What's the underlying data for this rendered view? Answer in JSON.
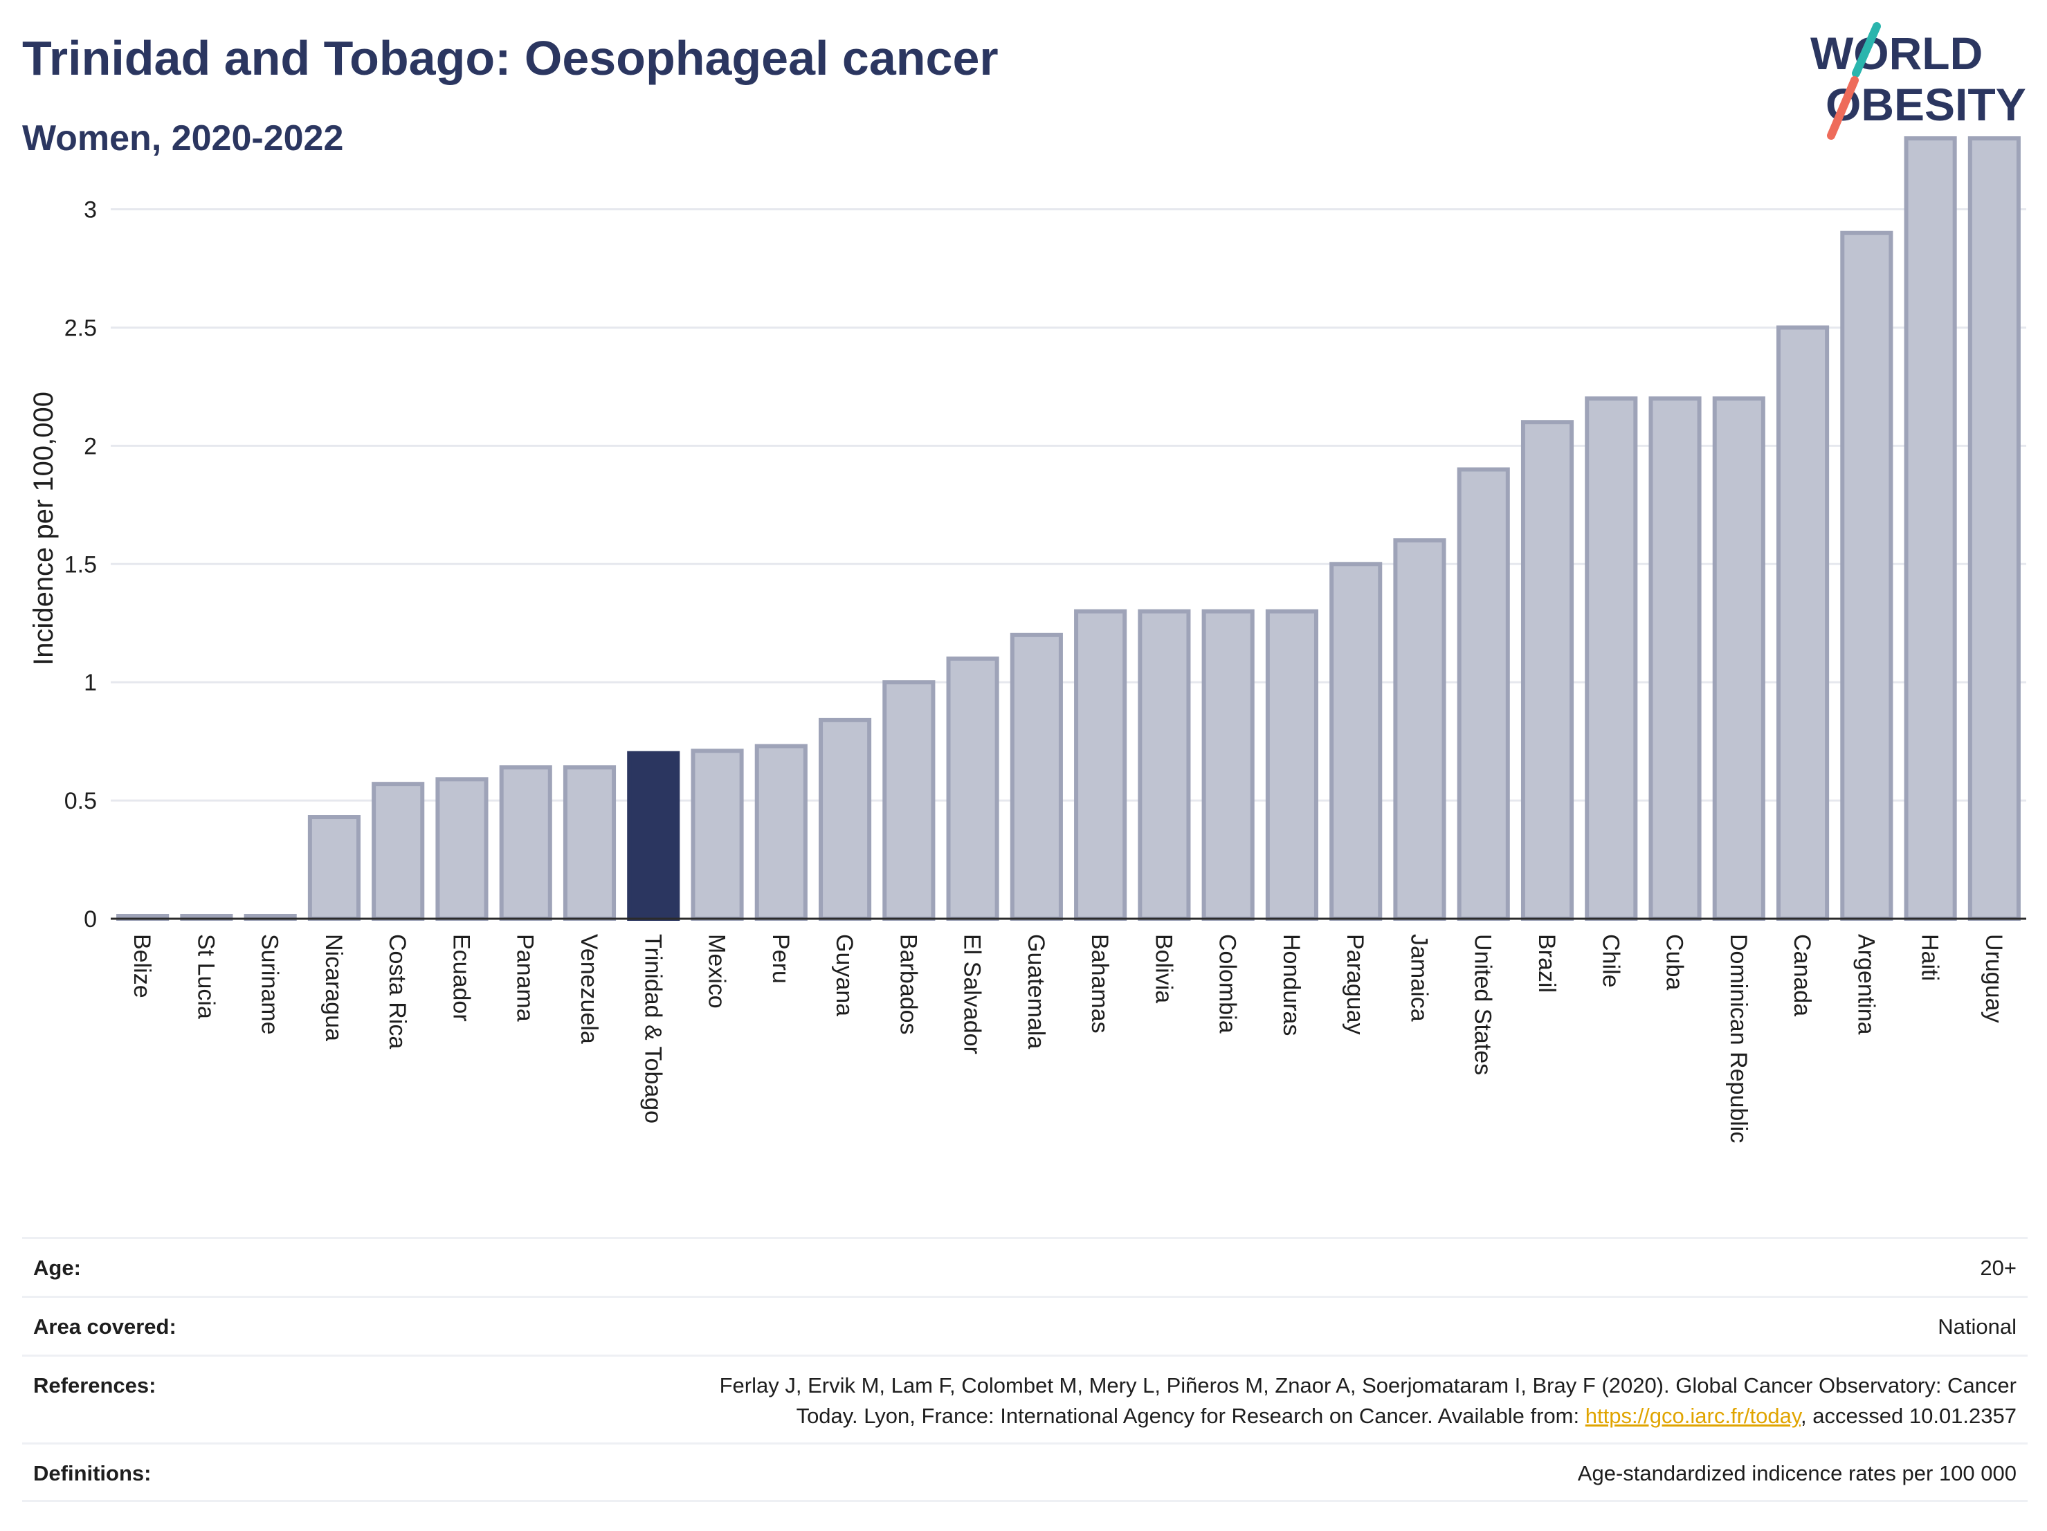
{
  "title": "Trinidad and Tobago: Oesophageal cancer",
  "subtitle": "Women, 2020-2022",
  "logo": {
    "line1": "WORLD",
    "line2": "OBESITY"
  },
  "colors": {
    "highlight_bar": "#2b3660",
    "default_bar_fill": "#bfc3d1",
    "default_bar_stroke": "#9ea3b8",
    "title": "#2b3660",
    "logo_teal": "#2bb5ad",
    "logo_coral": "#ee6b5a",
    "link": "#e0a400"
  },
  "chart_data": {
    "type": "bar",
    "ylabel": "Incidence per 100,000",
    "xlabel": "",
    "ylim": [
      0,
      3.3
    ],
    "yticks": [
      0,
      0.5,
      1,
      1.5,
      2,
      2.5,
      3
    ],
    "grid": true,
    "highlight": "Trinidad & Tobago",
    "categories": [
      "Belize",
      "St Lucia",
      "Suriname",
      "Nicaragua",
      "Costa Rica",
      "Ecuador",
      "Panama",
      "Venezuela",
      "Trinidad & Tobago",
      "Mexico",
      "Peru",
      "Guyana",
      "Barbados",
      "El Salvador",
      "Guatemala",
      "Bahamas",
      "Bolivia",
      "Colombia",
      "Honduras",
      "Paraguay",
      "Jamaica",
      "United States",
      "Brazil",
      "Chile",
      "Cuba",
      "Dominican Republic",
      "Canada",
      "Argentina",
      "Haiti",
      "Uruguay"
    ],
    "values": [
      0.0,
      0.0,
      0.0,
      0.43,
      0.57,
      0.59,
      0.64,
      0.64,
      0.7,
      0.71,
      0.73,
      0.84,
      1.0,
      1.1,
      1.2,
      1.3,
      1.3,
      1.3,
      1.3,
      1.5,
      1.6,
      1.9,
      2.1,
      2.2,
      2.2,
      2.2,
      2.5,
      2.9,
      3.3,
      3.3
    ]
  },
  "info": {
    "age_label": "Age:",
    "age_value": "20+",
    "area_label": "Area covered:",
    "area_value": "National",
    "references_label": "References:",
    "references_line1": "Ferlay J, Ervik M, Lam F, Colombet M, Mery L, Piñeros M, Znaor A, Soerjomataram I, Bray F (2020). Global Cancer Observatory: Cancer",
    "references_line2_pre": "Today. Lyon, France: International Agency for Research on Cancer. Available from: ",
    "references_link": "https://gco.iarc.fr/today",
    "references_line2_post": ", accessed 10.01.2357",
    "definitions_label": "Definitions:",
    "definitions_value": "Age-standardized indicence rates per 100 000"
  }
}
